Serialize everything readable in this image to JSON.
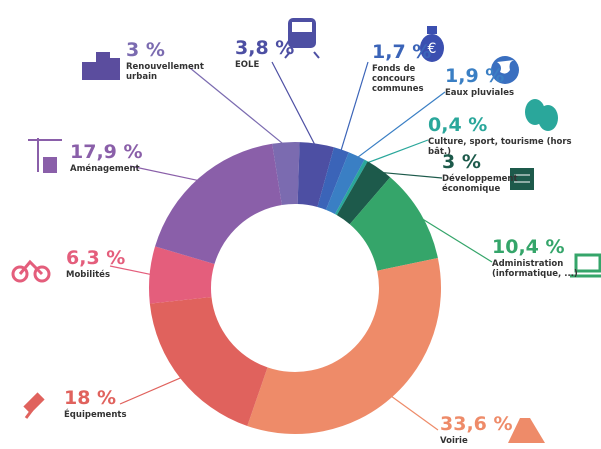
{
  "chart_data": {
    "type": "pie",
    "donut": true,
    "categories": [
      "Renouvellement urbain",
      "EOLE",
      "Fonds de concours communes",
      "Eaux pluviales",
      "Culture, sport, tourisme (hors bât.)",
      "Développement économique",
      "Administration (informatique, ...)",
      "Voirie",
      "Équipements",
      "Mobilités",
      "Aménagement"
    ],
    "values": [
      3,
      3.8,
      1.7,
      1.9,
      0.4,
      3,
      10.4,
      33.6,
      18,
      6.3,
      17.9
    ],
    "value_labels": [
      "3 %",
      "3,8 %",
      "1,7 %",
      "1,9 %",
      "0,4 %",
      "3 %",
      "10,4 %",
      "33,6 %",
      "18 %",
      "6,3 %",
      "17,9 %"
    ],
    "colors": [
      "#7b6bb0",
      "#4d4fa3",
      "#3b64b8",
      "#3a7fc4",
      "#2aa79b",
      "#1d5a4b",
      "#35a56a",
      "#ee8b69",
      "#e0625d",
      "#e45e7c",
      "#8a5fa9"
    ]
  }
}
